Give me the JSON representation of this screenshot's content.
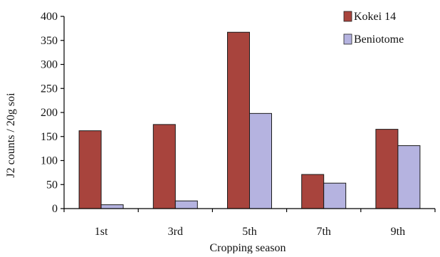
{
  "chart_data": {
    "type": "bar",
    "xlabel": "Cropping season",
    "ylabel": "J2 counts / 20g soi",
    "categories": [
      "1st",
      "3rd",
      "5th",
      "7th",
      "9th"
    ],
    "series": [
      {
        "name": "Kokei 14",
        "values": [
          162,
          175,
          367,
          71,
          165
        ],
        "color": "#a8443d"
      },
      {
        "name": "Beniotome",
        "values": [
          8,
          16,
          198,
          53,
          131
        ],
        "color": "#b5b3e0"
      }
    ],
    "ylim": [
      0,
      400
    ],
    "yticks": [
      0,
      50,
      100,
      150,
      200,
      250,
      300,
      350,
      400
    ],
    "grid": false,
    "legend_position": "top-right"
  }
}
